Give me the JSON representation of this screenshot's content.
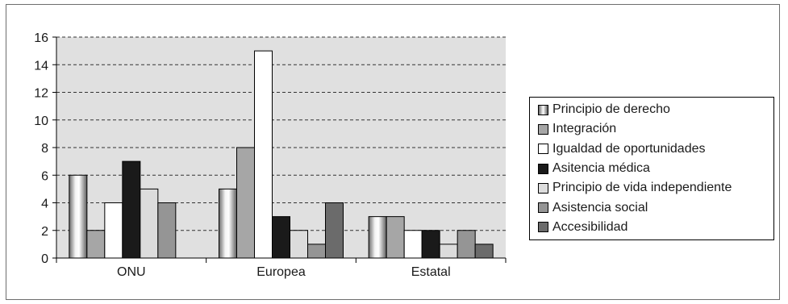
{
  "chart_data": {
    "type": "bar",
    "categories": [
      "ONU",
      "Europea",
      "Estatal"
    ],
    "ylim": [
      0,
      16
    ],
    "yticks": [
      0,
      2,
      4,
      6,
      8,
      10,
      12,
      14,
      16
    ],
    "grid": "horizontal dashed",
    "legend_position": "right",
    "series": [
      {
        "name": "Principio de derecho",
        "values": [
          6,
          5,
          3
        ],
        "fill": "gradient-metallic"
      },
      {
        "name": "Integración",
        "values": [
          2,
          8,
          3
        ],
        "fill": "#a6a6a6"
      },
      {
        "name": "Igualdad de oportunidades",
        "values": [
          4,
          15,
          2
        ],
        "fill": "#ffffff"
      },
      {
        "name": "Asitencia médica",
        "values": [
          7,
          3,
          2
        ],
        "fill": "#1a1a1a"
      },
      {
        "name": "Principio de vida independiente",
        "values": [
          5,
          2,
          1
        ],
        "fill": "#dcdcdc"
      },
      {
        "name": "Asistencia social",
        "values": [
          4,
          1,
          2
        ],
        "fill": "#959595"
      },
      {
        "name": "Accesibilidad",
        "values": [
          null,
          4,
          1
        ],
        "fill": "#6b6b6b"
      }
    ],
    "colors": {
      "plot_background": "#e0e0e0",
      "grid": "#333333"
    }
  }
}
